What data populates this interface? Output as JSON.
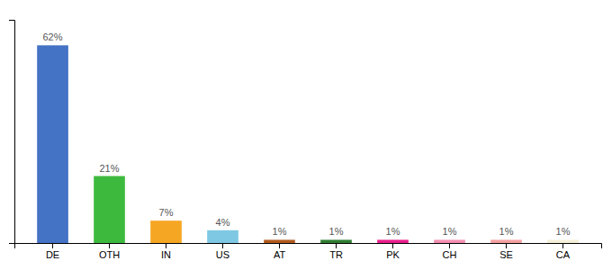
{
  "chart_data": {
    "type": "bar",
    "categories": [
      "DE",
      "OTH",
      "IN",
      "US",
      "AT",
      "TR",
      "PK",
      "CH",
      "SE",
      "CA"
    ],
    "values": [
      62,
      21,
      7,
      4,
      1,
      1,
      1,
      1,
      1,
      1
    ],
    "value_labels": [
      "62%",
      "21%",
      "7%",
      "4%",
      "1%",
      "1%",
      "1%",
      "1%",
      "1%",
      "1%"
    ],
    "colors": [
      "#4472c4",
      "#3dba3d",
      "#f5a623",
      "#7ec8e3",
      "#b05a1e",
      "#2e7d32",
      "#e91e8c",
      "#f48fb1",
      "#f4a0a0",
      "#f5f0d8"
    ],
    "ylim": [
      0,
      70
    ],
    "data_labels": true,
    "tick_labels": "x",
    "grid": false
  }
}
